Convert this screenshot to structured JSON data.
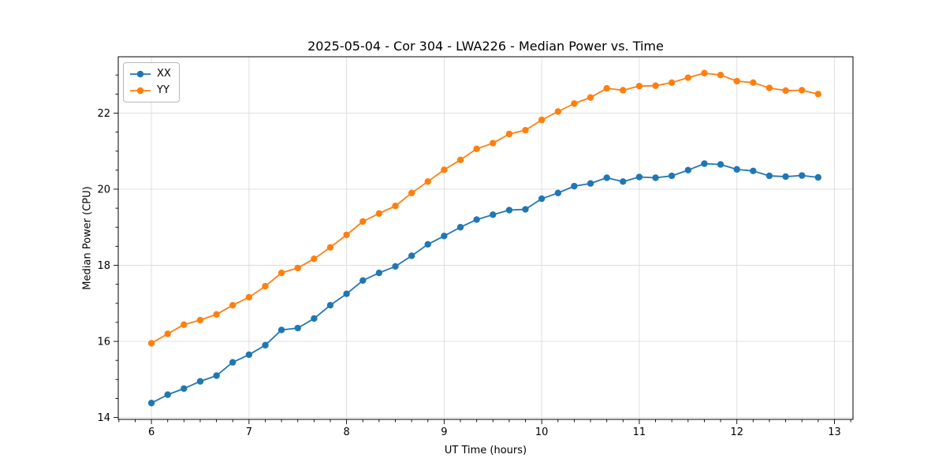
{
  "chart_data": {
    "type": "line",
    "title": "2025-05-04 - Cor 304 - LWA226 - Median Power vs. Time",
    "xlabel": "UT Time (hours)",
    "ylabel": "Median Power (CPU)",
    "xlim": [
      5.66,
      13.19
    ],
    "ylim": [
      13.95,
      23.48
    ],
    "x_ticks": [
      6,
      7,
      8,
      9,
      10,
      11,
      12,
      13
    ],
    "y_ticks": [
      14,
      16,
      18,
      20,
      22
    ],
    "x_minor_per_major": 6,
    "y_minor_step": 0.5,
    "grid": true,
    "legend_position": "upper left",
    "x": [
      6.0,
      6.167,
      6.333,
      6.5,
      6.667,
      6.833,
      7.0,
      7.167,
      7.333,
      7.5,
      7.667,
      7.833,
      8.0,
      8.167,
      8.333,
      8.5,
      8.667,
      8.833,
      9.0,
      9.167,
      9.333,
      9.5,
      9.667,
      9.833,
      10.0,
      10.167,
      10.333,
      10.5,
      10.667,
      10.833,
      11.0,
      11.167,
      11.333,
      11.5,
      11.667,
      11.833,
      12.0,
      12.167,
      12.333,
      12.5,
      12.667,
      12.833
    ],
    "series": [
      {
        "name": "XX",
        "color": "#1f77b4",
        "values": [
          14.38,
          14.6,
          14.76,
          14.95,
          15.1,
          15.45,
          15.65,
          15.9,
          16.3,
          16.35,
          16.6,
          16.95,
          17.25,
          17.6,
          17.8,
          17.97,
          18.25,
          18.55,
          18.77,
          19.0,
          19.2,
          19.33,
          19.45,
          19.47,
          19.75,
          19.9,
          20.08,
          20.15,
          20.3,
          20.2,
          20.32,
          20.3,
          20.35,
          20.5,
          20.67,
          20.65,
          20.52,
          20.48,
          20.35,
          20.33,
          20.36,
          20.31
        ]
      },
      {
        "name": "YY",
        "color": "#ff7f0e",
        "values": [
          15.95,
          16.2,
          16.44,
          16.56,
          16.71,
          16.95,
          17.16,
          17.45,
          17.8,
          17.93,
          18.17,
          18.47,
          18.8,
          19.15,
          19.36,
          19.56,
          19.9,
          20.2,
          20.51,
          20.77,
          21.06,
          21.21,
          21.45,
          21.55,
          21.82,
          22.04,
          22.25,
          22.41,
          22.65,
          22.6,
          22.71,
          22.72,
          22.8,
          22.93,
          23.05,
          23.0,
          22.84,
          22.8,
          22.66,
          22.59,
          22.6,
          22.5
        ]
      }
    ]
  },
  "legend": {
    "items": [
      {
        "label": "XX"
      },
      {
        "label": "YY"
      }
    ]
  }
}
